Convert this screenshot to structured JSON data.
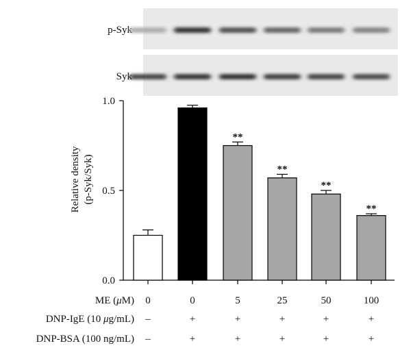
{
  "blots": [
    {
      "label": "p-Syk",
      "intensities": [
        0.25,
        0.85,
        0.7,
        0.6,
        0.5,
        0.45
      ]
    },
    {
      "label": "Syk",
      "intensities": [
        0.75,
        0.82,
        0.85,
        0.78,
        0.75,
        0.72
      ]
    }
  ],
  "treatments": [
    {
      "label": "ME (",
      "unit_symbol": "μ",
      "unit_rest": "M)",
      "values": [
        "0",
        "0",
        "5",
        "25",
        "50",
        "100"
      ]
    },
    {
      "label": "DNP-IgE (10 ",
      "unit_symbol": "μ",
      "unit_rest": "g/mL)",
      "values": [
        "–",
        "+",
        "+",
        "+",
        "+",
        "+"
      ]
    },
    {
      "label": "DNP-BSA (100 ng/mL)",
      "unit_symbol": "",
      "unit_rest": "",
      "values": [
        "–",
        "+",
        "+",
        "+",
        "+",
        "+"
      ]
    }
  ],
  "chart_data": {
    "type": "bar",
    "categories": [
      "0",
      "0",
      "5",
      "25",
      "50",
      "100"
    ],
    "values": [
      0.25,
      0.96,
      0.75,
      0.57,
      0.48,
      0.36
    ],
    "errors": [
      0.03,
      0.015,
      0.02,
      0.02,
      0.02,
      0.01
    ],
    "significance": [
      "",
      "",
      "**",
      "**",
      "**",
      "**"
    ],
    "bar_colors": [
      "#ffffff",
      "#000000",
      "#a6a6a6",
      "#a6a6a6",
      "#a6a6a6",
      "#a6a6a6"
    ],
    "ylabel_line1": "Relative density",
    "ylabel_line2": "(p-Syk/Syk)",
    "yticks": [
      "0.0",
      "0.5",
      "1.0"
    ],
    "ylim": [
      0,
      1.0
    ]
  }
}
